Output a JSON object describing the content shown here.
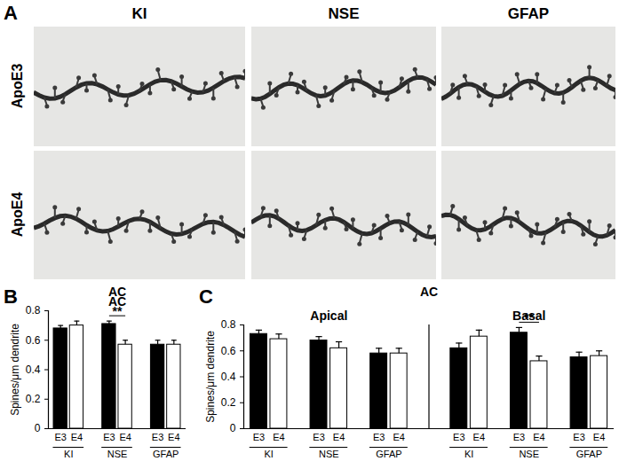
{
  "panel_a": {
    "label": "A",
    "columns": [
      "KI",
      "NSE",
      "GFAP"
    ],
    "rows": [
      "ApoE3",
      "ApoE4"
    ]
  },
  "chart_data": [
    {
      "panel": "B",
      "type": "bar",
      "title": "AC",
      "y_label": "Spines/μm dendrite",
      "categories": [
        "KI",
        "NSE",
        "GFAP"
      ],
      "series": [
        {
          "name": "E3",
          "color": "#000000",
          "values": [
            0.68,
            0.71,
            0.57
          ],
          "errors": [
            0.02,
            0.02,
            0.03
          ]
        },
        {
          "name": "E4",
          "color": "#ffffff",
          "values": [
            0.7,
            0.57,
            0.57
          ],
          "errors": [
            0.03,
            0.03,
            0.03
          ]
        }
      ],
      "ylim": [
        0,
        0.8
      ],
      "yticks": [
        0,
        0.2,
        0.4,
        0.6,
        0.8
      ],
      "annotations": [
        {
          "text": "**",
          "category": "NSE"
        }
      ]
    },
    {
      "panel": "C",
      "type": "bar",
      "title": "AC",
      "y_label": "Spines/μm dendrite",
      "ylim": [
        0,
        0.8
      ],
      "yticks": [
        0,
        0.2,
        0.4,
        0.6,
        0.8
      ],
      "subplots": [
        {
          "title": "Apical",
          "categories": [
            "KI",
            "NSE",
            "GFAP"
          ],
          "series": [
            {
              "name": "E3",
              "color": "#000000",
              "values": [
                0.73,
                0.68,
                0.58
              ],
              "errors": [
                0.03,
                0.03,
                0.04
              ]
            },
            {
              "name": "E4",
              "color": "#ffffff",
              "values": [
                0.69,
                0.62,
                0.58
              ],
              "errors": [
                0.04,
                0.05,
                0.04
              ]
            }
          ]
        },
        {
          "title": "Basal",
          "categories": [
            "KI",
            "NSE",
            "GFAP"
          ],
          "series": [
            {
              "name": "E3",
              "color": "#000000",
              "values": [
                0.62,
                0.74,
                0.55
              ],
              "errors": [
                0.04,
                0.04,
                0.04
              ]
            },
            {
              "name": "E4",
              "color": "#ffffff",
              "values": [
                0.71,
                0.52,
                0.56
              ],
              "errors": [
                0.05,
                0.04,
                0.04
              ]
            }
          ],
          "annotations": [
            {
              "text": "**",
              "category": "NSE"
            }
          ]
        }
      ]
    }
  ]
}
